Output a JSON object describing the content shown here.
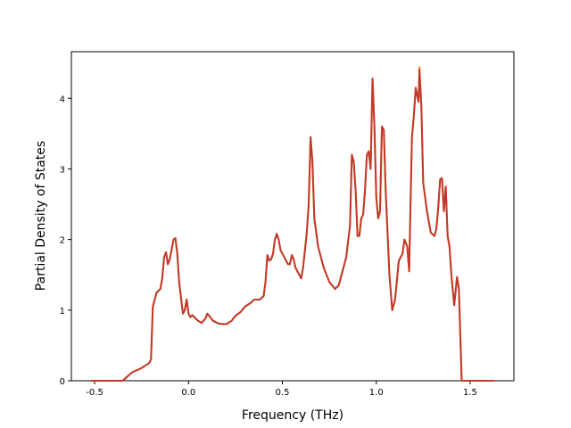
{
  "chart_data": {
    "type": "line",
    "xlabel": "Frequency (THz)",
    "ylabel": "Partial Density of States",
    "x": [
      -0.52,
      -0.35,
      -0.33,
      -0.3,
      -0.25,
      -0.21,
      -0.2,
      -0.19,
      -0.17,
      -0.15,
      -0.14,
      -0.13,
      -0.12,
      -0.11,
      -0.1,
      -0.08,
      -0.07,
      -0.06,
      -0.05,
      -0.03,
      -0.02,
      -0.01,
      0.0,
      0.01,
      0.02,
      0.05,
      0.07,
      0.09,
      0.1,
      0.11,
      0.13,
      0.16,
      0.2,
      0.23,
      0.25,
      0.28,
      0.3,
      0.33,
      0.35,
      0.38,
      0.4,
      0.41,
      0.42,
      0.43,
      0.44,
      0.45,
      0.46,
      0.47,
      0.48,
      0.49,
      0.51,
      0.53,
      0.54,
      0.55,
      0.56,
      0.57,
      0.59,
      0.6,
      0.61,
      0.63,
      0.64,
      0.65,
      0.66,
      0.67,
      0.69,
      0.72,
      0.75,
      0.78,
      0.8,
      0.82,
      0.84,
      0.86,
      0.87,
      0.88,
      0.89,
      0.9,
      0.91,
      0.92,
      0.93,
      0.94,
      0.95,
      0.96,
      0.97,
      0.98,
      0.99,
      1.0,
      1.01,
      1.02,
      1.03,
      1.04,
      1.05,
      1.07,
      1.085,
      1.1,
      1.12,
      1.14,
      1.15,
      1.165,
      1.175,
      1.19,
      1.2,
      1.21,
      1.225,
      1.23,
      1.24,
      1.25,
      1.27,
      1.29,
      1.31,
      1.32,
      1.33,
      1.34,
      1.35,
      1.36,
      1.37,
      1.38,
      1.39,
      1.4,
      1.415,
      1.43,
      1.44,
      1.455,
      1.63
    ],
    "series": [
      {
        "color": "#ff7f0e",
        "values": [
          0,
          0,
          0.05,
          0.12,
          0.18,
          0.25,
          0.3,
          1.05,
          1.25,
          1.3,
          1.45,
          1.75,
          1.82,
          1.65,
          1.72,
          2.0,
          2.02,
          1.8,
          1.4,
          0.95,
          1.0,
          1.15,
          0.95,
          0.9,
          0.93,
          0.85,
          0.82,
          0.88,
          0.95,
          0.92,
          0.85,
          0.81,
          0.8,
          0.85,
          0.92,
          0.98,
          1.05,
          1.1,
          1.15,
          1.15,
          1.2,
          1.4,
          1.78,
          1.7,
          1.72,
          1.8,
          2.0,
          2.08,
          2.0,
          1.85,
          1.75,
          1.65,
          1.65,
          1.78,
          1.72,
          1.6,
          1.5,
          1.45,
          1.6,
          2.1,
          2.5,
          3.45,
          3.1,
          2.3,
          1.9,
          1.6,
          1.4,
          1.3,
          1.35,
          1.55,
          1.75,
          2.2,
          3.2,
          3.1,
          2.7,
          2.05,
          2.05,
          2.3,
          2.35,
          2.7,
          3.2,
          3.25,
          3.0,
          4.28,
          3.6,
          2.6,
          2.3,
          2.4,
          3.6,
          3.55,
          2.7,
          1.5,
          1.0,
          1.15,
          1.7,
          1.8,
          2.0,
          1.9,
          1.55,
          3.45,
          3.75,
          4.15,
          3.95,
          4.44,
          3.9,
          2.8,
          2.4,
          2.1,
          2.05,
          2.15,
          2.45,
          2.85,
          2.87,
          2.4,
          2.75,
          2.05,
          1.9,
          1.5,
          1.07,
          1.47,
          1.3,
          0,
          0
        ]
      },
      {
        "color": "#c0392b",
        "values": [
          0,
          0,
          0.05,
          0.12,
          0.18,
          0.25,
          0.3,
          1.05,
          1.25,
          1.3,
          1.45,
          1.75,
          1.82,
          1.65,
          1.72,
          2.0,
          2.02,
          1.8,
          1.4,
          0.95,
          1.0,
          1.15,
          0.95,
          0.9,
          0.93,
          0.85,
          0.82,
          0.88,
          0.95,
          0.92,
          0.85,
          0.81,
          0.8,
          0.85,
          0.92,
          0.98,
          1.05,
          1.1,
          1.15,
          1.15,
          1.2,
          1.4,
          1.78,
          1.7,
          1.72,
          1.8,
          2.0,
          2.08,
          2.0,
          1.85,
          1.75,
          1.65,
          1.65,
          1.78,
          1.72,
          1.6,
          1.5,
          1.45,
          1.6,
          2.1,
          2.5,
          3.45,
          3.1,
          2.3,
          1.9,
          1.6,
          1.4,
          1.3,
          1.35,
          1.55,
          1.75,
          2.2,
          3.2,
          3.1,
          2.7,
          2.05,
          2.05,
          2.3,
          2.35,
          2.7,
          3.2,
          3.25,
          3.0,
          4.28,
          3.6,
          2.6,
          2.3,
          2.4,
          3.6,
          3.55,
          2.7,
          1.5,
          1.0,
          1.15,
          1.7,
          1.8,
          2.0,
          1.9,
          1.55,
          3.45,
          3.75,
          4.15,
          3.95,
          4.4,
          3.9,
          2.8,
          2.4,
          2.1,
          2.05,
          2.15,
          2.45,
          2.85,
          2.87,
          2.4,
          2.75,
          2.05,
          1.9,
          1.5,
          1.07,
          1.47,
          1.3,
          0,
          0
        ]
      }
    ],
    "xlim": [
      -0.624,
      1.733
    ],
    "ylim": [
      0,
      4.66
    ],
    "xticks": [
      -0.5,
      {
        "value": 0,
        "label": "0.0"
      },
      0.5,
      {
        "value": 1,
        "label": "1.0"
      },
      1.5
    ],
    "yticks": [
      0,
      1,
      2,
      3,
      4
    ]
  }
}
